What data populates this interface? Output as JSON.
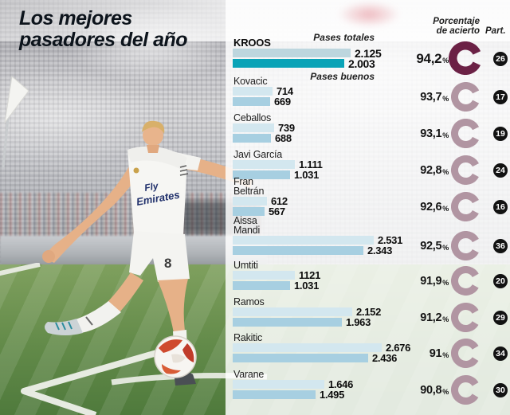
{
  "title": {
    "line1": "Los mejores",
    "line2": "pasadores del año",
    "color": "#0d141c"
  },
  "headers": {
    "pases_totales": "Pases totales",
    "pases_buenos": "Pases buenos",
    "porcentaje_line1": "Porcentaje",
    "porcentaje_line2": "de acierto",
    "part": "Part."
  },
  "percent_sign": "%",
  "colors": {
    "bar_total": "#d3e7ef",
    "bar_good": "#a7cfe1",
    "highlight_bar_total": "#bdd6de",
    "highlight_bar_good": "#09a3b7",
    "donut_highlight": "#6b2145",
    "donut_normal": "#b195a2",
    "badge_bg": "#121212",
    "badge_text": "#ffffff"
  },
  "chart_data": {
    "type": "bar",
    "orientation": "horizontal",
    "series_labels": [
      "Pases totales",
      "Pases buenos"
    ],
    "value_axis_max": 2676,
    "legend_position": "inline-first-rows",
    "grid": false,
    "players": [
      {
        "name": "KROOS",
        "highlight": true,
        "pases_totales": 2125,
        "pases_buenos": 2003,
        "totales_label": "2.125",
        "buenos_label": "2.003",
        "porcentaje": 94.2,
        "porcentaje_label": "94,2",
        "partidos": "26"
      },
      {
        "name": "Kovacic",
        "highlight": false,
        "pases_totales": 714,
        "pases_buenos": 669,
        "totales_label": "714",
        "buenos_label": "669",
        "porcentaje": 93.7,
        "porcentaje_label": "93,7",
        "partidos": "17"
      },
      {
        "name": "Ceballos",
        "highlight": false,
        "pases_totales": 739,
        "pases_buenos": 688,
        "totales_label": "739",
        "buenos_label": "688",
        "porcentaje": 93.1,
        "porcentaje_label": "93,1",
        "partidos": "19"
      },
      {
        "name": "Javi García",
        "highlight": false,
        "pases_totales": 1111,
        "pases_buenos": 1031,
        "totales_label": "1.111",
        "buenos_label": "1.031",
        "porcentaje": 92.8,
        "porcentaje_label": "92,8",
        "partidos": "24"
      },
      {
        "name": "Fran Beltrán",
        "highlight": false,
        "pases_totales": 612,
        "pases_buenos": 567,
        "totales_label": "612",
        "buenos_label": "567",
        "porcentaje": 92.6,
        "porcentaje_label": "92,6",
        "partidos": "16"
      },
      {
        "name": "Aissa Mandi",
        "highlight": false,
        "pases_totales": 2531,
        "pases_buenos": 2343,
        "totales_label": "2.531",
        "buenos_label": "2.343",
        "porcentaje": 92.5,
        "porcentaje_label": "92,5",
        "partidos": "36"
      },
      {
        "name": "Umtiti",
        "highlight": false,
        "pases_totales": 1121,
        "pases_buenos": 1031,
        "totales_label": "1121",
        "buenos_label": "1.031",
        "porcentaje": 91.9,
        "porcentaje_label": "91,9",
        "partidos": "20"
      },
      {
        "name": "Ramos",
        "highlight": false,
        "pases_totales": 2152,
        "pases_buenos": 1963,
        "totales_label": "2.152",
        "buenos_label": "1.963",
        "porcentaje": 91.2,
        "porcentaje_label": "91,2",
        "partidos": "29"
      },
      {
        "name": "Rakitic",
        "highlight": false,
        "pases_totales": 2676,
        "pases_buenos": 2436,
        "totales_label": "2.676",
        "buenos_label": "2.436",
        "porcentaje": 91.0,
        "porcentaje_label": "91",
        "partidos": "34"
      },
      {
        "name": "Varane",
        "highlight": false,
        "pases_totales": 1646,
        "pases_buenos": 1495,
        "totales_label": "1.646",
        "buenos_label": "1.495",
        "porcentaje": 90.8,
        "porcentaje_label": "90,8",
        "partidos": "30"
      }
    ]
  }
}
